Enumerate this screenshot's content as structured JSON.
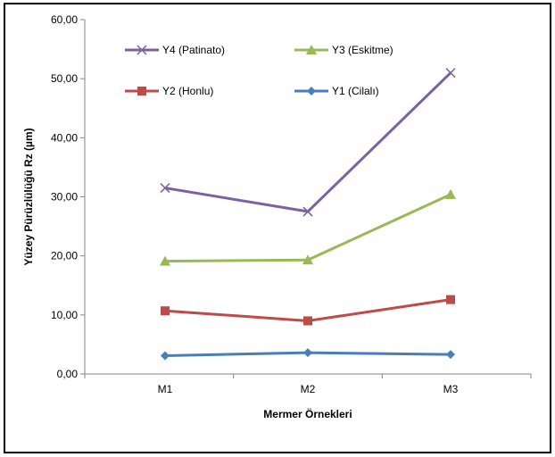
{
  "chart_data": {
    "type": "line",
    "title": "",
    "xlabel": "Mermer Örnekleri",
    "ylabel": "Yüzey Pürüzlülüğü Rz (µm)",
    "ylim": [
      0,
      60
    ],
    "yticks": [
      "0,00",
      "10,00",
      "20,00",
      "30,00",
      "40,00",
      "50,00",
      "60,00"
    ],
    "ytick_values": [
      0,
      10,
      20,
      30,
      40,
      50,
      60
    ],
    "categories": [
      "M1",
      "M2",
      "M3"
    ],
    "grid": false,
    "legend_position": "top-left, inside plot",
    "series": [
      {
        "name": "Y1 (Cilalı)",
        "values": [
          3.1,
          3.6,
          3.3
        ],
        "color": "#4a7ebb",
        "marker": "diamond"
      },
      {
        "name": "Y2 (Honlu)",
        "values": [
          10.7,
          9.0,
          12.6
        ],
        "color": "#be4b48",
        "marker": "square"
      },
      {
        "name": "Y3 (Eskitme)",
        "values": [
          19.1,
          19.3,
          30.4
        ],
        "color": "#98b954",
        "marker": "triangle"
      },
      {
        "name": "Y4 (Patinato)",
        "values": [
          31.5,
          27.5,
          51.0
        ],
        "color": "#7d60a0",
        "marker": "x"
      }
    ],
    "legend_order": [
      3,
      2,
      1,
      0
    ]
  }
}
